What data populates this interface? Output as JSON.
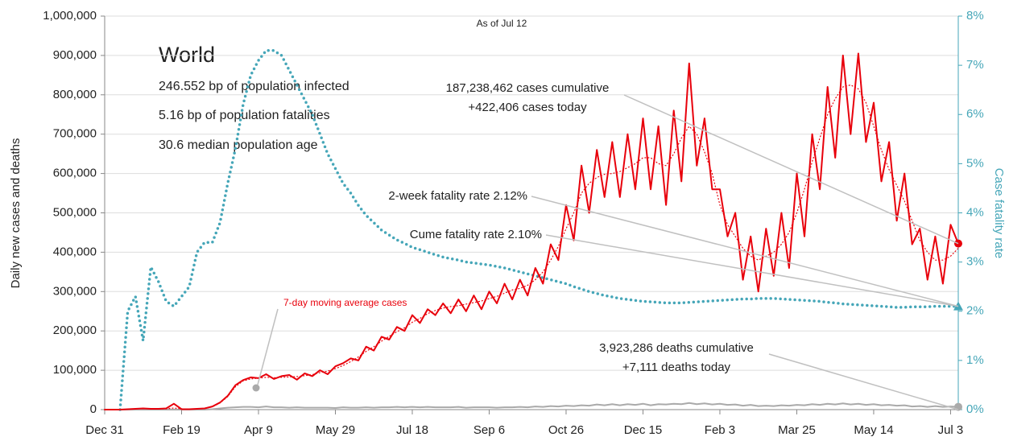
{
  "chart_data": {
    "type": "line",
    "subtitle": "As of Jul 12",
    "title": "World",
    "info": [
      "246.552 bp of population infected",
      "5.16 bp of population fatalities",
      "30.6 median population age"
    ],
    "annotations": [
      "187,238,462 cases cumulative",
      "+422,406 cases today",
      "2-week fatality rate 2.12%",
      "Cume fatality rate 2.10%",
      "3,923,286 deaths cumulative",
      "+7,111 deaths today"
    ],
    "ylabel": "Daily new cases and deaths",
    "y2label": "Case fatality rate",
    "xlim": [
      0,
      555
    ],
    "xticks": [
      {
        "value": 0,
        "label": "Dec 31"
      },
      {
        "value": 50,
        "label": "Feb 19"
      },
      {
        "value": 100,
        "label": "Apr 9"
      },
      {
        "value": 150,
        "label": "May 29"
      },
      {
        "value": 200,
        "label": "Jul 18"
      },
      {
        "value": 250,
        "label": "Sep 6"
      },
      {
        "value": 300,
        "label": "Oct 26"
      },
      {
        "value": 350,
        "label": "Dec 15"
      },
      {
        "value": 400,
        "label": "Feb 3"
      },
      {
        "value": 450,
        "label": "Mar 25"
      },
      {
        "value": 500,
        "label": "May 14"
      },
      {
        "value": 550,
        "label": "Jul 3"
      }
    ],
    "ylim": [
      0,
      1000000
    ],
    "yticks": [
      0,
      {
        "value": 100000,
        "label": "100,000"
      },
      {
        "value": 200000,
        "label": "200,000"
      },
      {
        "value": 300000,
        "label": "300,000"
      },
      {
        "value": 400000,
        "label": "400,000"
      },
      {
        "value": 500000,
        "label": "500,000"
      },
      {
        "value": 600000,
        "label": "600,000"
      },
      {
        "value": 700000,
        "label": "700,000"
      },
      {
        "value": 800000,
        "label": "800,000"
      },
      {
        "value": 900000,
        "label": "900,000"
      },
      {
        "value": 1000000,
        "label": "1,000,000"
      }
    ],
    "y2lim": [
      0,
      8
    ],
    "y2ticks": [
      {
        "value": 0,
        "label": "0%"
      },
      {
        "value": 1,
        "label": "1%"
      },
      {
        "value": 2,
        "label": "2%"
      },
      {
        "value": 3,
        "label": "3%"
      },
      {
        "value": 4,
        "label": "4%"
      },
      {
        "value": 5,
        "label": "5%"
      },
      {
        "value": 6,
        "label": "6%"
      },
      {
        "value": 7,
        "label": "7%"
      },
      {
        "value": 8,
        "label": "8%"
      }
    ],
    "grid": true,
    "x": [
      0,
      5,
      10,
      15,
      20,
      25,
      30,
      35,
      40,
      45,
      50,
      55,
      60,
      65,
      70,
      75,
      80,
      85,
      90,
      95,
      100,
      105,
      110,
      115,
      120,
      125,
      130,
      135,
      140,
      145,
      150,
      155,
      160,
      165,
      170,
      175,
      180,
      185,
      190,
      195,
      200,
      205,
      210,
      215,
      220,
      225,
      230,
      235,
      240,
      245,
      250,
      255,
      260,
      265,
      270,
      275,
      280,
      285,
      290,
      295,
      300,
      305,
      310,
      315,
      320,
      325,
      330,
      335,
      340,
      345,
      350,
      355,
      360,
      365,
      370,
      375,
      380,
      385,
      390,
      395,
      400,
      405,
      410,
      415,
      420,
      425,
      430,
      435,
      440,
      445,
      450,
      455,
      460,
      465,
      470,
      475,
      480,
      485,
      490,
      495,
      500,
      505,
      510,
      515,
      520,
      525,
      530,
      535,
      540,
      545,
      550,
      555
    ],
    "series": [
      {
        "color": "#e8000b",
        "style": "solid",
        "values": [
          0,
          0,
          0,
          1000,
          2000,
          3000,
          2000,
          2000,
          3000,
          15000,
          1000,
          1000,
          2000,
          3000,
          8000,
          18000,
          35000,
          62000,
          75000,
          82000,
          80000,
          90000,
          78000,
          85000,
          88000,
          76000,
          92000,
          85000,
          100000,
          90000,
          110000,
          118000,
          130000,
          125000,
          160000,
          150000,
          185000,
          178000,
          210000,
          200000,
          240000,
          220000,
          255000,
          240000,
          270000,
          245000,
          280000,
          250000,
          290000,
          255000,
          300000,
          270000,
          320000,
          280000,
          330000,
          290000,
          360000,
          320000,
          420000,
          380000,
          520000,
          430000,
          620000,
          500000,
          660000,
          540000,
          680000,
          540000,
          700000,
          560000,
          740000,
          560000,
          720000,
          520000,
          760000,
          580000,
          880000,
          620000,
          740000,
          560000,
          560000,
          440000,
          500000,
          330000,
          440000,
          300000,
          460000,
          340000,
          500000,
          360000,
          600000,
          440000,
          700000,
          560000,
          820000,
          640000,
          900000,
          700000,
          905000,
          680000,
          780000,
          580000,
          680000,
          480000,
          600000,
          420000,
          460000,
          330000,
          440000,
          320000,
          470000,
          422000
        ]
      },
      {
        "name": "7-day moving average cases",
        "color": "#e8000b",
        "style": "dotted",
        "values": [
          0,
          0,
          0,
          1000,
          2000,
          2500,
          2000,
          2000,
          2000,
          4000,
          2000,
          1500,
          2000,
          3000,
          7000,
          17000,
          33000,
          58000,
          73000,
          78000,
          80000,
          82000,
          81000,
          82000,
          83000,
          84000,
          86000,
          89000,
          94000,
          98000,
          104000,
          112000,
          122000,
          134000,
          148000,
          160000,
          174000,
          186000,
          198000,
          208000,
          222000,
          232000,
          244000,
          252000,
          258000,
          262000,
          264000,
          268000,
          272000,
          276000,
          282000,
          288000,
          296000,
          304000,
          308000,
          316000,
          330000,
          350000,
          380000,
          415000,
          460000,
          500000,
          550000,
          575000,
          590000,
          598000,
          600000,
          605000,
          615000,
          625000,
          640000,
          640000,
          625000,
          620000,
          650000,
          690000,
          720000,
          700000,
          655000,
          600000,
          520000,
          470000,
          440000,
          410000,
          390000,
          380000,
          390000,
          400000,
          420000,
          450000,
          500000,
          560000,
          630000,
          690000,
          750000,
          790000,
          820000,
          825000,
          815000,
          780000,
          720000,
          660000,
          610000,
          570000,
          530000,
          480000,
          430000,
          400000,
          380000,
          380000,
          390000,
          410000
        ]
      },
      {
        "color": "#aaaaaa",
        "style": "solid",
        "values": [
          0,
          0,
          0,
          0,
          0,
          0,
          0,
          0,
          0,
          0,
          0,
          0,
          0,
          0,
          1000,
          3000,
          5000,
          6000,
          7000,
          7000,
          6000,
          8000,
          6000,
          6000,
          5000,
          6000,
          5000,
          5000,
          5000,
          5000,
          4000,
          6000,
          5000,
          5000,
          6000,
          5000,
          6000,
          6000,
          7000,
          6000,
          7000,
          6000,
          7000,
          6000,
          6000,
          6000,
          7000,
          5000,
          6000,
          6000,
          6000,
          5000,
          6000,
          6000,
          7000,
          6000,
          8000,
          7000,
          9000,
          8000,
          10000,
          9000,
          11000,
          10000,
          13000,
          11000,
          14000,
          11000,
          14000,
          12000,
          15000,
          11000,
          14000,
          13000,
          15000,
          14000,
          17000,
          14000,
          16000,
          13000,
          15000,
          12000,
          13000,
          10000,
          12000,
          9000,
          10000,
          9000,
          11000,
          10000,
          12000,
          11000,
          14000,
          12000,
          15000,
          13000,
          16000,
          13000,
          15000,
          12000,
          14000,
          11000,
          12000,
          10000,
          11000,
          8000,
          9000,
          7000,
          9000,
          7000,
          8000,
          7000
        ]
      },
      {
        "color": "#45a6b8",
        "style": "dotted",
        "axis": "y2",
        "values": [
          null,
          null,
          0,
          2.0,
          2.3,
          1.4,
          2.9,
          2.6,
          2.2,
          2.1,
          2.3,
          2.5,
          3.2,
          3.4,
          3.4,
          3.8,
          4.6,
          5.3,
          6.2,
          6.8,
          7.1,
          7.3,
          7.3,
          7.2,
          6.9,
          6.6,
          6.3,
          6.0,
          5.6,
          5.2,
          4.9,
          4.6,
          4.4,
          4.15,
          3.95,
          3.8,
          3.65,
          3.55,
          3.45,
          3.38,
          3.3,
          3.25,
          3.2,
          3.15,
          3.1,
          3.07,
          3.04,
          3.0,
          2.98,
          2.96,
          2.94,
          2.91,
          2.88,
          2.84,
          2.8,
          2.76,
          2.72,
          2.68,
          2.64,
          2.6,
          2.56,
          2.5,
          2.45,
          2.4,
          2.36,
          2.32,
          2.29,
          2.26,
          2.24,
          2.22,
          2.2,
          2.19,
          2.18,
          2.17,
          2.17,
          2.17,
          2.18,
          2.19,
          2.2,
          2.21,
          2.22,
          2.23,
          2.24,
          2.25,
          2.25,
          2.26,
          2.26,
          2.26,
          2.25,
          2.24,
          2.23,
          2.22,
          2.21,
          2.2,
          2.18,
          2.17,
          2.15,
          2.14,
          2.13,
          2.12,
          2.11,
          2.1,
          2.09,
          2.08,
          2.08,
          2.09,
          2.09,
          2.09,
          2.1,
          2.1,
          2.1,
          2.1
        ]
      }
    ]
  }
}
